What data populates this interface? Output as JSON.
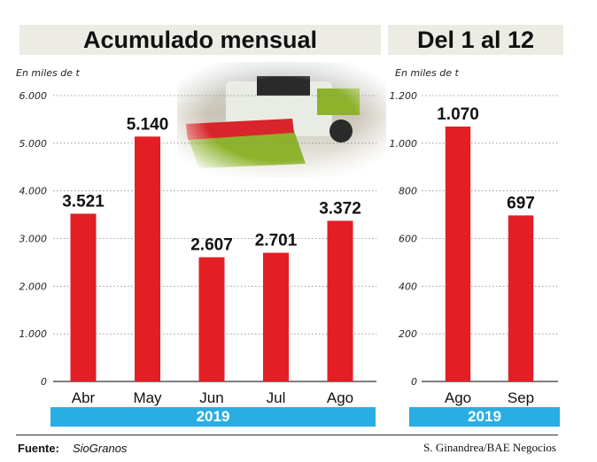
{
  "header": {
    "title_left": "Acumulado mensual",
    "title_right": "Del 1 al 12"
  },
  "footer": {
    "source_label": "Fuente:",
    "source_value": "SioGranos",
    "credit": "S. Ginandrea/BAE Negocios"
  },
  "colors": {
    "bar": "#e31e24",
    "year_band": "#29aee3",
    "title_bg": "#ecebe4"
  },
  "decor": {
    "photo": "combine-harvester-photo"
  },
  "chart_data": [
    {
      "type": "bar",
      "unit_label": "En miles de t",
      "categories": [
        "Abr",
        "May",
        "Jun",
        "Jul",
        "Ago"
      ],
      "values": [
        3521,
        5140,
        2607,
        2701,
        3372
      ],
      "value_labels": [
        "3.521",
        "5.140",
        "2.607",
        "2.701",
        "3.372"
      ],
      "ylim": [
        0,
        6000
      ],
      "yticks": [
        0,
        1000,
        2000,
        3000,
        4000,
        5000,
        6000
      ],
      "ytick_labels": [
        "0",
        "1.000",
        "2.000",
        "3.000",
        "4.000",
        "5.000",
        "6.000"
      ],
      "grid": true,
      "year_label": "2019"
    },
    {
      "type": "bar",
      "unit_label": "En miles de t",
      "categories": [
        "Ago",
        "Sep"
      ],
      "values": [
        1070,
        697
      ],
      "value_labels": [
        "1.070",
        "697"
      ],
      "ylim": [
        0,
        1200
      ],
      "yticks": [
        0,
        200,
        400,
        600,
        800,
        1000,
        1200
      ],
      "ytick_labels": [
        "0",
        "200",
        "400",
        "600",
        "800",
        "1.000",
        "1.200"
      ],
      "grid": true,
      "year_label": "2019"
    }
  ]
}
